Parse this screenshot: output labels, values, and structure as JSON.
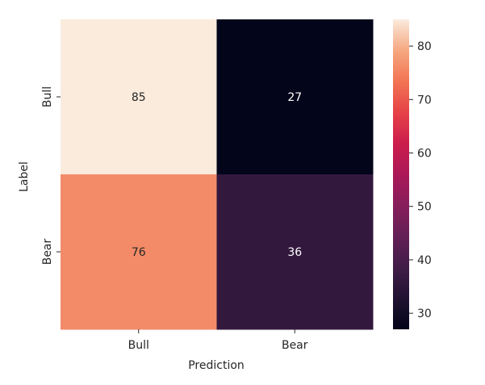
{
  "chart_data": {
    "type": "heatmap",
    "title": "",
    "xlabel": "Prediction",
    "ylabel": "Label",
    "x_categories": [
      "Bull",
      "Bear"
    ],
    "y_categories": [
      "Bull",
      "Bear"
    ],
    "values": [
      [
        85,
        27
      ],
      [
        76,
        36
      ]
    ],
    "colormap": "rocket",
    "value_range": [
      27,
      85
    ],
    "colorbar": {
      "ticks": [
        30,
        40,
        50,
        60,
        70,
        80
      ],
      "placement": "right"
    },
    "annotated": true,
    "grid": false
  }
}
